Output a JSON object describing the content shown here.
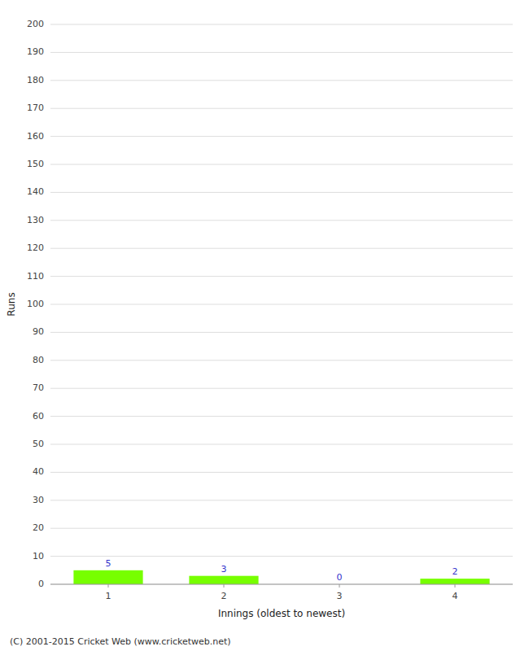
{
  "chart_data": {
    "type": "bar",
    "categories": [
      1,
      2,
      3,
      4
    ],
    "values": [
      5,
      3,
      0,
      2
    ],
    "color": "#77ff00",
    "xlabel": "Innings (oldest to newest)",
    "ylabel": "Runs",
    "ylim": [
      0,
      200
    ],
    "yticks": [
      0,
      10,
      20,
      30,
      40,
      50,
      60,
      70,
      80,
      90,
      100,
      110,
      120,
      130,
      140,
      150,
      160,
      170,
      180,
      190,
      200
    ],
    "grid": true,
    "data_labels": true,
    "footer": "(C) 2001-2015 Cricket Web (www.cricketweb.net)"
  }
}
